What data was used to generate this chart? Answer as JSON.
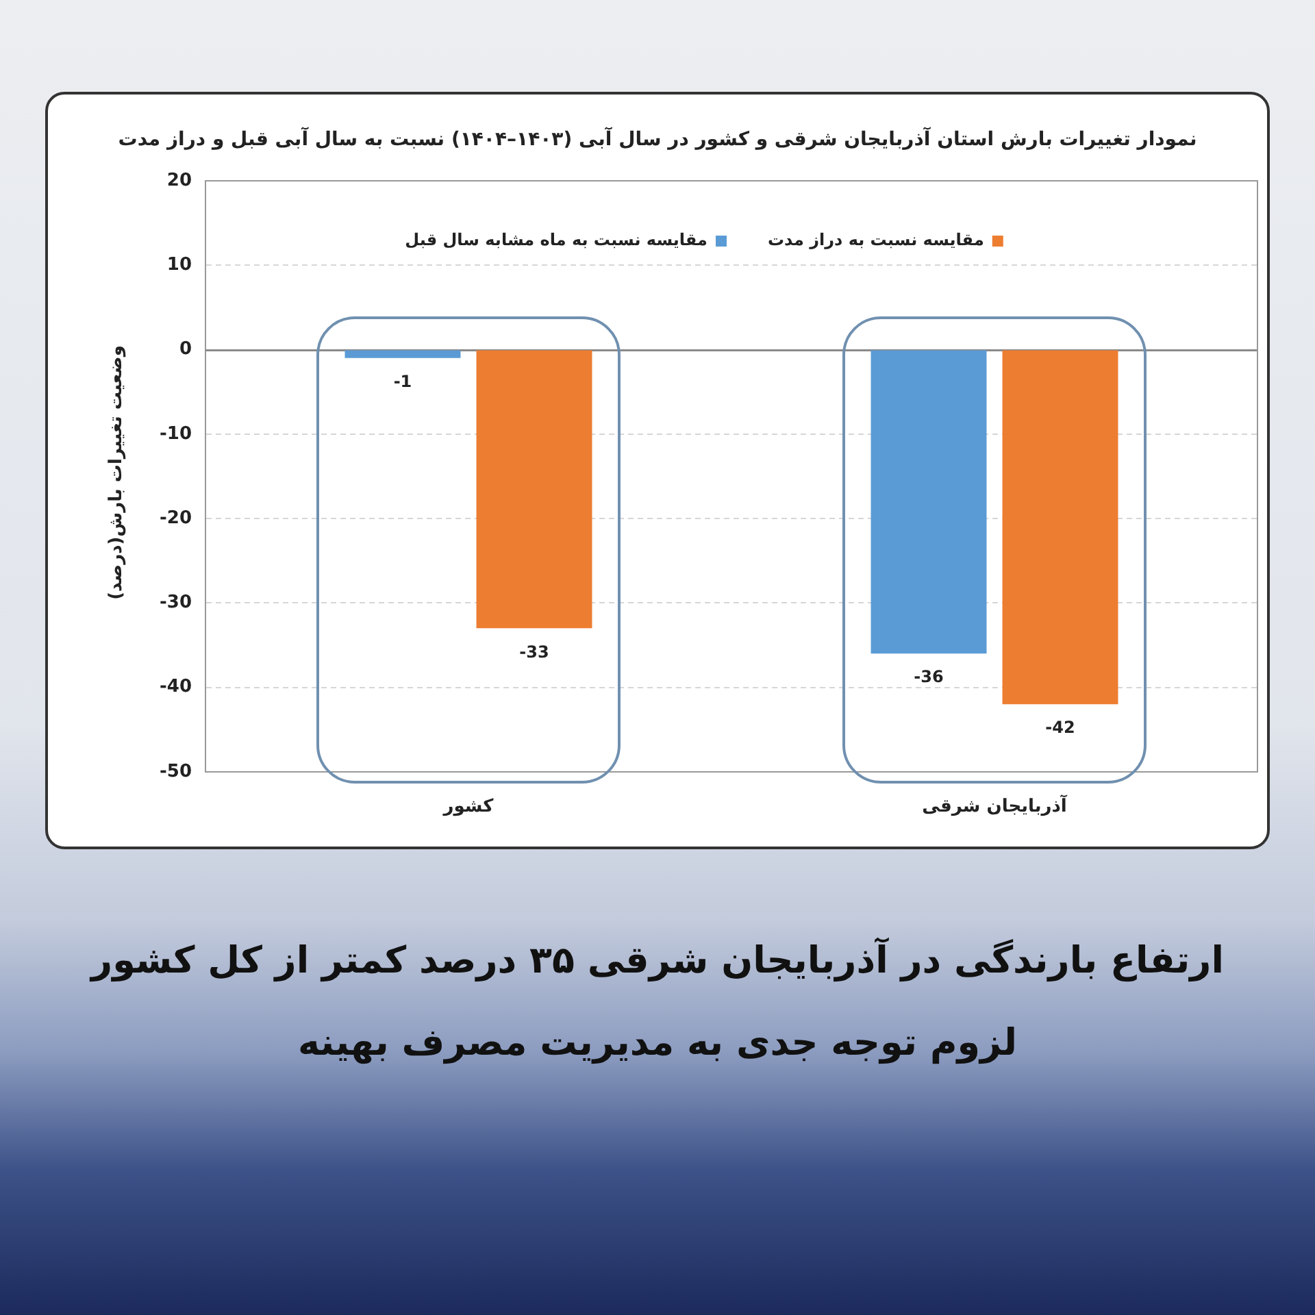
{
  "chart_data": {
    "type": "bar",
    "title": "نمودار تغییرات بارش استان آذربایجان شرقی و کشور در سال آبی (۱۴۰۳–۱۴۰۴) نسبت به سال آبی قبل و دراز مدت",
    "ylabel": "وضعیت تغییرات بارش(درصد)",
    "categories": [
      "کشور",
      "آذربایجان شرقی"
    ],
    "series": [
      {
        "name": "مقایسه نسبت به ماه مشابه سال قبل",
        "color": "#5b9bd5",
        "values": [
          -1,
          -36
        ]
      },
      {
        "name": "مقایسه نسبت به دراز مدت",
        "color": "#ed7d31",
        "values": [
          -33,
          -42
        ]
      }
    ],
    "ylim": [
      -50,
      20
    ],
    "yticks": [
      -50,
      -40,
      -30,
      -20,
      -10,
      0,
      10,
      20
    ],
    "grid": "y",
    "legend": "top",
    "data_labels": true,
    "annotations": [
      "ارتفاع بارندگی در آذربایجان شرقی ۳۵ درصد کمتر از کل کشور",
      "لزوم توجه جدی به مدیریت مصرف بهینه"
    ]
  }
}
